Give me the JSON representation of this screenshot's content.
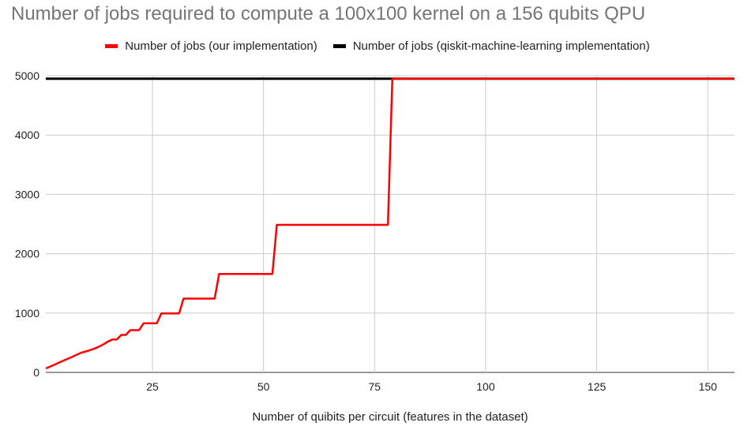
{
  "chart_data": {
    "type": "line",
    "title": "Number of jobs required to compute a 100x100 kernel on a 156 qubits QPU",
    "xlabel": "Number of quibits per circuit (features in the dataset)",
    "ylabel": "",
    "xlim": [
      1,
      156
    ],
    "ylim": [
      0,
      5000
    ],
    "x_ticks": [
      25,
      50,
      75,
      100,
      125,
      150
    ],
    "y_ticks": [
      0,
      1000,
      2000,
      3000,
      4000,
      5000
    ],
    "grid": true,
    "legend_position": "top",
    "series": [
      {
        "name": "Number of jobs (our implementation)",
        "color": "#ff0000",
        "x": [
          1,
          2,
          3,
          4,
          5,
          6,
          7,
          8,
          9,
          10,
          11,
          12,
          13,
          14,
          15,
          16,
          17,
          18,
          19,
          20,
          21,
          22,
          23,
          24,
          25,
          26,
          27,
          28,
          29,
          30,
          31,
          32,
          39,
          40,
          52,
          53,
          78,
          79,
          156
        ],
        "y": [
          66,
          99,
          132,
          166,
          199,
          232,
          265,
          299,
          332,
          352,
          376,
          403,
          435,
          474,
          521,
          554,
          554,
          632,
          632,
          711,
          711,
          711,
          829,
          829,
          829,
          829,
          995,
          995,
          995,
          995,
          995,
          1243,
          1243,
          1658,
          1658,
          2487,
          2487,
          4950,
          4950
        ]
      },
      {
        "name": "Number of jobs (qiskit-machine-learning implementation)",
        "color": "#000000",
        "x": [
          1,
          156
        ],
        "y": [
          4950,
          4950
        ]
      }
    ]
  }
}
